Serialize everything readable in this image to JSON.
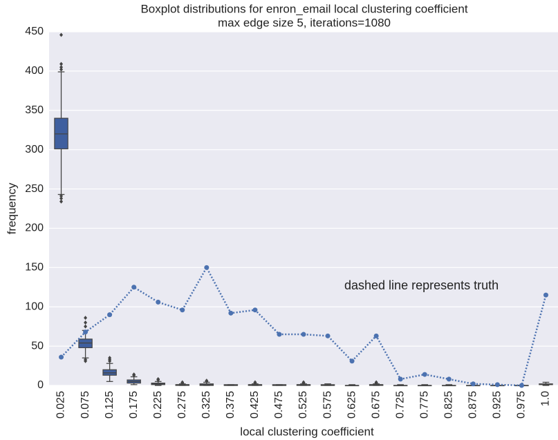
{
  "chart_data": {
    "type": "box",
    "title": "Boxplot distributions for enron_email local clustering coefficient",
    "subtitle": "max edge size 5, iterations=1080",
    "x_label": "local clustering coefficient",
    "y_label": "frequency",
    "annotation": "dashed line represents truth",
    "categories": [
      "0.025",
      "0.075",
      "0.125",
      "0.175",
      "0.225",
      "0.275",
      "0.325",
      "0.375",
      "0.425",
      "0.475",
      "0.525",
      "0.575",
      "0.625",
      "0.675",
      "0.725",
      "0.775",
      "0.825",
      "0.875",
      "0.925",
      "0.975",
      "1.0"
    ],
    "box_color": "#3f5f9f",
    "boxes": [
      {
        "whislo": 243,
        "q1": 301,
        "med": 320,
        "q3": 340,
        "whishi": 399,
        "fliers": [
          234,
          238,
          241,
          402,
          405,
          409,
          446
        ]
      },
      {
        "whislo": 35,
        "q1": 48,
        "med": 54,
        "q3": 59,
        "whishi": 70,
        "fliers": [
          31,
          33,
          75,
          80,
          86
        ]
      },
      {
        "whislo": 5,
        "q1": 13,
        "med": 16,
        "q3": 20,
        "whishi": 28,
        "fliers": [
          31,
          33,
          35
        ]
      },
      {
        "whislo": 1,
        "q1": 3,
        "med": 5,
        "q3": 7,
        "whishi": 11,
        "fliers": [
          13,
          14
        ]
      },
      {
        "whislo": 0,
        "q1": 1,
        "med": 2,
        "q3": 3,
        "whishi": 5,
        "fliers": [
          7,
          8
        ]
      },
      {
        "whislo": 0,
        "q1": 0,
        "med": 1,
        "q3": 1,
        "whishi": 2,
        "fliers": [
          3,
          4
        ]
      },
      {
        "whislo": 0,
        "q1": 0,
        "med": 1,
        "q3": 2,
        "whishi": 4,
        "fliers": [
          5,
          6
        ]
      },
      {
        "whislo": 0,
        "q1": 0,
        "med": 0,
        "q3": 1,
        "whishi": 1,
        "fliers": []
      },
      {
        "whislo": 0,
        "q1": 0,
        "med": 1,
        "q3": 1,
        "whishi": 2,
        "fliers": [
          3,
          4
        ]
      },
      {
        "whislo": 0,
        "q1": 0,
        "med": 0,
        "q3": 1,
        "whishi": 1,
        "fliers": []
      },
      {
        "whislo": 0,
        "q1": 0,
        "med": 1,
        "q3": 1,
        "whishi": 2,
        "fliers": [
          3,
          4
        ]
      },
      {
        "whislo": 0,
        "q1": 0,
        "med": 0,
        "q3": 1,
        "whishi": 2,
        "fliers": []
      },
      {
        "whislo": 0,
        "q1": 0,
        "med": 0,
        "q3": 0,
        "whishi": 1,
        "fliers": []
      },
      {
        "whislo": 0,
        "q1": 0,
        "med": 1,
        "q3": 1,
        "whishi": 2,
        "fliers": [
          3,
          4
        ]
      },
      {
        "whislo": 0,
        "q1": 0,
        "med": 0,
        "q3": 0,
        "whishi": 1,
        "fliers": []
      },
      {
        "whislo": 0,
        "q1": 0,
        "med": 0,
        "q3": 0,
        "whishi": 1,
        "fliers": []
      },
      {
        "whislo": 0,
        "q1": 0,
        "med": 0,
        "q3": 0,
        "whishi": 1,
        "fliers": []
      },
      {
        "whislo": 0,
        "q1": 0,
        "med": 0,
        "q3": 0,
        "whishi": 0,
        "fliers": []
      },
      {
        "whislo": 0,
        "q1": 0,
        "med": 0,
        "q3": 0,
        "whishi": 0,
        "fliers": []
      },
      {
        "whislo": 0,
        "q1": 0,
        "med": 0,
        "q3": 0,
        "whishi": 0,
        "fliers": []
      },
      {
        "whislo": 0,
        "q1": 1,
        "med": 1,
        "q3": 2,
        "whishi": 4,
        "fliers": []
      }
    ],
    "series": [
      {
        "color": "#4c72b0",
        "values": [
          36,
          68,
          90,
          125,
          106,
          96,
          150,
          92,
          96,
          65,
          65,
          63,
          31,
          63,
          8,
          14,
          8,
          2,
          1,
          0,
          115
        ]
      }
    ],
    "ylim": [
      0,
      450
    ],
    "yticks": [
      0,
      50,
      100,
      150,
      200,
      250,
      300,
      350,
      400,
      450
    ],
    "grid": true
  }
}
